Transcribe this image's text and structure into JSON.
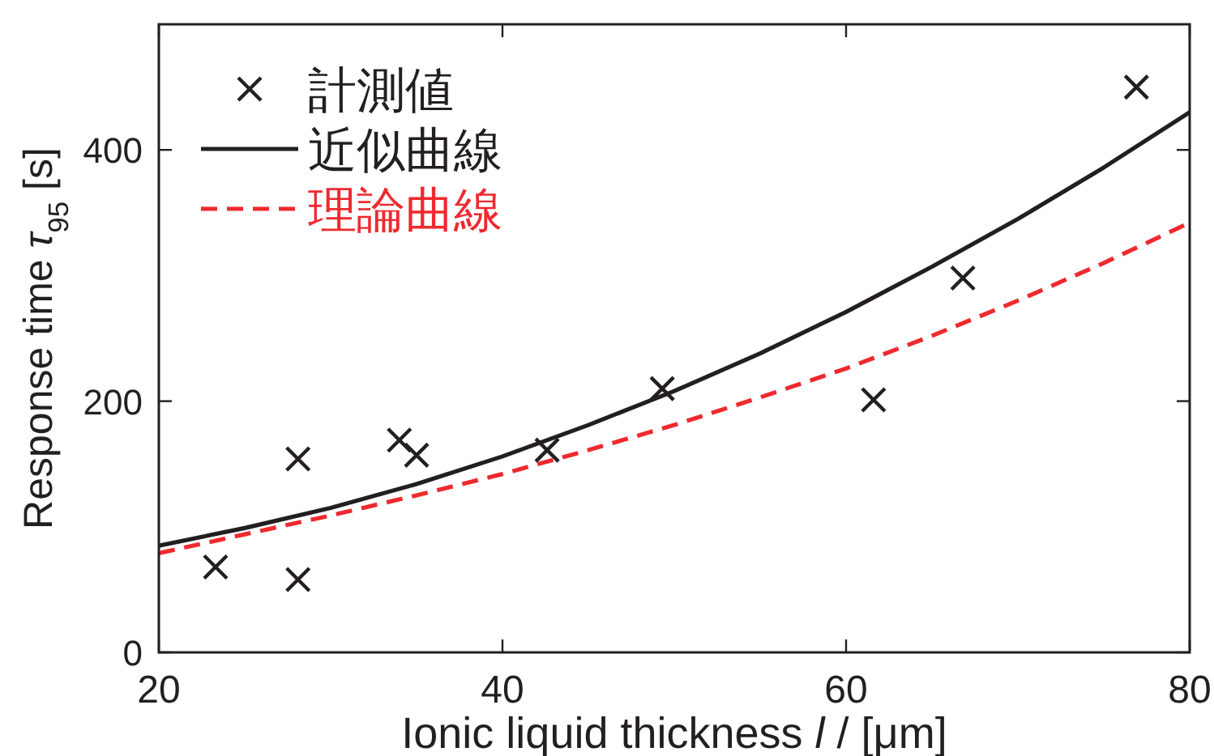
{
  "chart_data": {
    "type": "scatter",
    "xlabel": "Ionic liquid thickness *l* / [μm]",
    "ylabel": "Response time *τ*$_{95}$ [s]",
    "xlim": [
      20,
      80
    ],
    "ylim": [
      0,
      500
    ],
    "xticks": [
      20,
      40,
      60,
      80
    ],
    "yticks": [
      0,
      200,
      400
    ],
    "legend": "top left",
    "series": [
      {
        "name": "計測値",
        "marker": "cross",
        "color": "#231f20",
        "x": [
          23.3,
          28.1,
          28.1,
          34.0,
          35.0,
          42.6,
          49.3,
          61.6,
          66.8,
          76.9
        ],
        "values": [
          68,
          154,
          58,
          169,
          157,
          161,
          210,
          201,
          298,
          450
        ]
      },
      {
        "name": "近似曲線",
        "type": "line",
        "marker": "none",
        "line_style": "solid",
        "color": "#231f20",
        "x": [
          20,
          25,
          30,
          35,
          40,
          45,
          50,
          55,
          60,
          65,
          70,
          75,
          80
        ],
        "values": [
          85,
          99,
          115,
          134,
          156,
          181,
          208,
          238,
          271,
          307,
          345,
          386,
          430
        ]
      },
      {
        "name": "理論曲線",
        "type": "line",
        "marker": "none",
        "line_style": "dashed",
        "color": "#ee2a2e",
        "x": [
          20,
          25,
          30,
          35,
          40,
          45,
          50,
          55,
          60,
          65,
          70,
          75,
          80
        ],
        "values": [
          79,
          94,
          109,
          125,
          142,
          161,
          181,
          203,
          226,
          252,
          280,
          310,
          342
        ]
      }
    ]
  }
}
